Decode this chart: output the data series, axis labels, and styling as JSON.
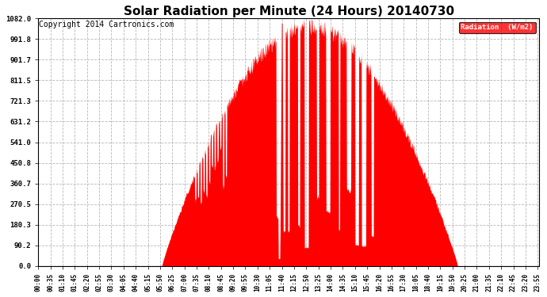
{
  "title": "Solar Radiation per Minute (24 Hours) 20140730",
  "copyright_text": "Copyright 2014 Cartronics.com",
  "legend_label": "Radiation  (W/m2)",
  "yticks": [
    0.0,
    90.2,
    180.3,
    270.5,
    360.7,
    450.8,
    541.0,
    631.2,
    721.3,
    811.5,
    901.7,
    991.8,
    1082.0
  ],
  "ymax": 1082.0,
  "ymin": 0.0,
  "fill_color": "#ff0000",
  "line_color": "#ff0000",
  "background_color": "#ffffff",
  "grid_color": "#b0b0b0",
  "title_fontsize": 11,
  "copyright_fontsize": 7,
  "xtick_interval_minutes": 35,
  "total_minutes": 1440,
  "sunrise_min": 355,
  "sunset_min": 1205,
  "peak_min": 700,
  "peak_value": 1082.0
}
